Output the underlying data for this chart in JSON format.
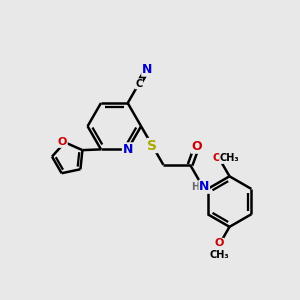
{
  "bg_color": "#e8e8e8",
  "bond_color": "#000000",
  "bond_width": 1.8,
  "atom_colors": {
    "C": "#000000",
    "N": "#0000cc",
    "O": "#cc0000",
    "S": "#aaaa00",
    "H": "#666666"
  },
  "font_size": 8,
  "fig_size": [
    3.0,
    3.0
  ],
  "dpi": 100
}
